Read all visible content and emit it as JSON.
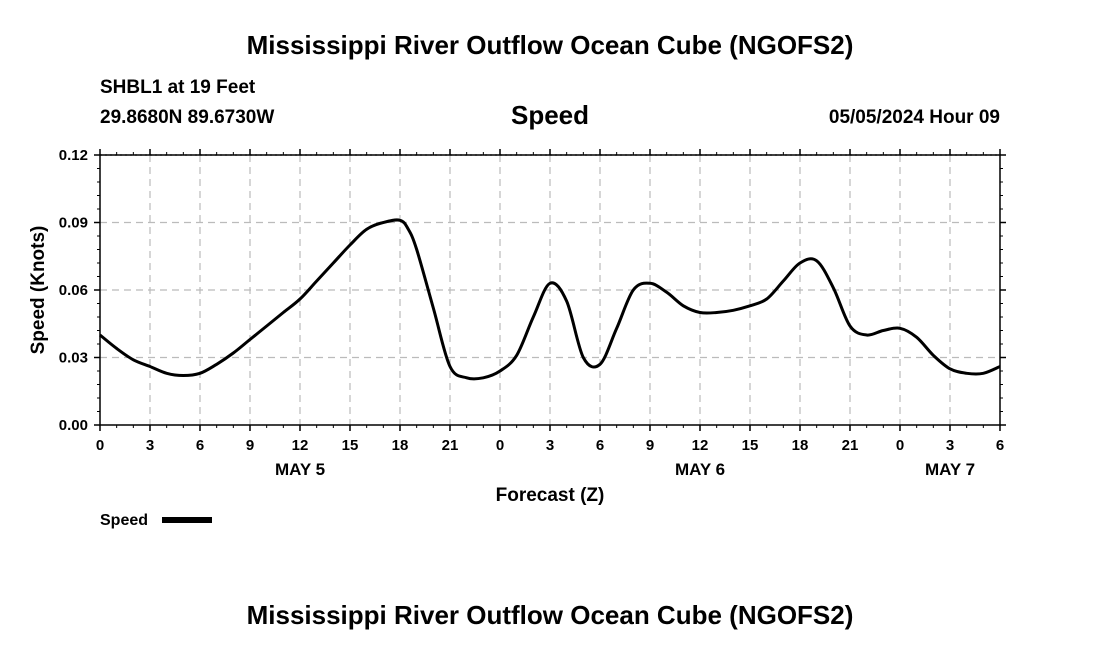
{
  "header": {
    "title_top": "Mississippi River Outflow Ocean Cube (NGOFS2)",
    "station": "SHBL1 at 19 Feet",
    "coords": "29.8680N  89.6730W",
    "datetime": "05/05/2024 Hour 09",
    "title_bottom": "Mississippi River Outflow Ocean Cube (NGOFS2)"
  },
  "chart_data": {
    "type": "line",
    "title": "Speed",
    "xlabel": "Forecast (Z)",
    "ylabel": "Speed (Knots)",
    "ylim": [
      0,
      0.12
    ],
    "xlim": [
      0,
      54
    ],
    "yticks": [
      "0.00",
      "0.03",
      "0.06",
      "0.09",
      "0.12"
    ],
    "xticks": [
      "0",
      "3",
      "6",
      "9",
      "12",
      "15",
      "18",
      "21",
      "0",
      "3",
      "6",
      "9",
      "12",
      "15",
      "18",
      "21",
      "0",
      "3",
      "6"
    ],
    "day_labels": [
      {
        "label": "MAY 5",
        "x_hours": 12
      },
      {
        "label": "MAY 6",
        "x_hours": 36
      },
      {
        "label": "MAY 7",
        "x_hours": 51
      }
    ],
    "grid": true,
    "legend": {
      "position": "bottom-left",
      "entries": [
        "Speed"
      ]
    },
    "series": [
      {
        "name": "Speed",
        "color": "#000000",
        "x": [
          0,
          1,
          2,
          3,
          4,
          5,
          6,
          7,
          8,
          9,
          10,
          11,
          12,
          13,
          14,
          15,
          16,
          17,
          18,
          18.5,
          19,
          20,
          21,
          22,
          23,
          24,
          25,
          26,
          27,
          28,
          29,
          30,
          31,
          32,
          33,
          34,
          35,
          36,
          37,
          38,
          39,
          40,
          41,
          42,
          43,
          44,
          45,
          46,
          47,
          48,
          49,
          50,
          51,
          52,
          53,
          54
        ],
        "y": [
          0.04,
          0.034,
          0.029,
          0.026,
          0.023,
          0.022,
          0.023,
          0.027,
          0.032,
          0.038,
          0.044,
          0.05,
          0.056,
          0.064,
          0.072,
          0.08,
          0.087,
          0.09,
          0.091,
          0.087,
          0.078,
          0.052,
          0.026,
          0.021,
          0.021,
          0.024,
          0.031,
          0.048,
          0.063,
          0.055,
          0.03,
          0.027,
          0.043,
          0.06,
          0.063,
          0.059,
          0.053,
          0.05,
          0.05,
          0.051,
          0.053,
          0.056,
          0.064,
          0.072,
          0.073,
          0.061,
          0.044,
          0.04,
          0.042,
          0.043,
          0.039,
          0.031,
          0.025,
          0.023,
          0.023,
          0.026
        ]
      }
    ]
  }
}
